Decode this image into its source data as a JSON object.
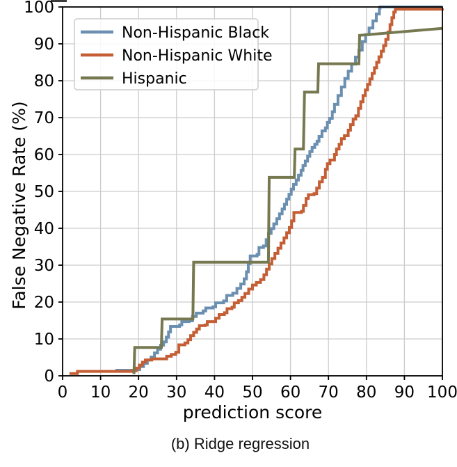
{
  "figure": {
    "caption": "(b) Ridge regression"
  },
  "chart_data": {
    "type": "line",
    "subtype": "step-cdf",
    "title": "",
    "xlabel": "prediction score",
    "ylabel": "False Negative Rate (%)",
    "xlim": [
      0,
      100
    ],
    "ylim": [
      0,
      100
    ],
    "xticks": [
      0,
      10,
      20,
      30,
      40,
      50,
      60,
      70,
      80,
      90,
      100
    ],
    "yticks": [
      0,
      10,
      20,
      30,
      40,
      50,
      60,
      70,
      80,
      90,
      100
    ],
    "grid": true,
    "grid_color": "#cccccc",
    "legend_position": "upper left",
    "series": [
      {
        "name": "Non-Hispanic Black",
        "color": "#6b8fb0",
        "interpolation": "step",
        "points": [
          [
            13.9,
            1.5
          ],
          [
            19.3,
            1.7
          ],
          [
            20.3,
            2.5
          ],
          [
            21.3,
            3.4
          ],
          [
            22.3,
            4.3
          ],
          [
            23.3,
            5.1
          ],
          [
            24.2,
            6.2
          ],
          [
            25,
            7.2
          ],
          [
            25.8,
            8.3
          ],
          [
            26.6,
            9.2
          ],
          [
            27.3,
            10.5
          ],
          [
            27.9,
            11.9
          ],
          [
            28.4,
            13.4
          ],
          [
            30.8,
            13.8
          ],
          [
            31.4,
            14.7
          ],
          [
            33.3,
            14.9
          ],
          [
            34.2,
            16.1
          ],
          [
            35.2,
            17
          ],
          [
            37,
            17.6
          ],
          [
            37.7,
            18.4
          ],
          [
            39.6,
            18.7
          ],
          [
            40.3,
            19.8
          ],
          [
            42.4,
            20.3
          ],
          [
            43.2,
            21.8
          ],
          [
            44.8,
            22.4
          ],
          [
            45.9,
            23.7
          ],
          [
            46.9,
            24.9
          ],
          [
            47.8,
            26.3
          ],
          [
            48.4,
            28.2
          ],
          [
            48.9,
            30.4
          ],
          [
            49.4,
            32.5
          ],
          [
            51.2,
            32.9
          ],
          [
            51.7,
            34.8
          ],
          [
            52.9,
            35.2
          ],
          [
            53.6,
            36.9
          ],
          [
            54.2,
            38.6
          ],
          [
            54.9,
            39.9
          ],
          [
            55.6,
            41.2
          ],
          [
            56.4,
            42.6
          ],
          [
            57.1,
            43.9
          ],
          [
            57.8,
            45.2
          ],
          [
            58.4,
            46.5
          ],
          [
            59,
            47.9
          ],
          [
            59.6,
            49.2
          ],
          [
            60.2,
            50.6
          ],
          [
            60.8,
            51.9
          ],
          [
            61.5,
            53.1
          ],
          [
            62.1,
            54.4
          ],
          [
            62.8,
            55.7
          ],
          [
            63.3,
            57
          ],
          [
            63.9,
            58.2
          ],
          [
            64.5,
            59.5
          ],
          [
            65.1,
            60.8
          ],
          [
            65.7,
            61.9
          ],
          [
            66.4,
            62.8
          ],
          [
            67,
            63.6
          ],
          [
            67.5,
            64.9
          ],
          [
            68.3,
            66.4
          ],
          [
            69.2,
            67.2
          ],
          [
            69.7,
            68.7
          ],
          [
            70.3,
            69.8
          ],
          [
            71,
            71.6
          ],
          [
            71.6,
            73.6
          ],
          [
            72.5,
            76
          ],
          [
            73.4,
            78.3
          ],
          [
            74.3,
            80.6
          ],
          [
            75.2,
            82.6
          ],
          [
            76.1,
            84.5
          ],
          [
            77.1,
            86.4
          ],
          [
            78,
            88.3
          ],
          [
            78.9,
            90.6
          ],
          [
            79.8,
            92.5
          ],
          [
            80.7,
            94.3
          ],
          [
            81.7,
            96.2
          ],
          [
            82.6,
            98.1
          ],
          [
            83.4,
            99.7
          ],
          [
            83.6,
            100
          ],
          [
            100,
            100
          ]
        ]
      },
      {
        "name": "Non-Hispanic White",
        "color": "#c45f35",
        "interpolation": "step",
        "points": [
          [
            1.8,
            0.6
          ],
          [
            3.9,
            1.2
          ],
          [
            18.3,
            1.4
          ],
          [
            19.4,
            2.1
          ],
          [
            20.2,
            2.9
          ],
          [
            21,
            3.7
          ],
          [
            21.8,
            4.3
          ],
          [
            23.5,
            4.6
          ],
          [
            27.4,
            5.3
          ],
          [
            28.6,
            5.8
          ],
          [
            29.8,
            6.4
          ],
          [
            30.6,
            8.4
          ],
          [
            32.2,
            8.9
          ],
          [
            33,
            9.8
          ],
          [
            33.7,
            10.9
          ],
          [
            34.5,
            11.8
          ],
          [
            35.3,
            12.7
          ],
          [
            36,
            13.6
          ],
          [
            37.5,
            13.8
          ],
          [
            38.1,
            14.7
          ],
          [
            40.3,
            15.6
          ],
          [
            41.2,
            16.6
          ],
          [
            42.6,
            17.1
          ],
          [
            43.3,
            18.2
          ],
          [
            44.6,
            18.6
          ],
          [
            45.2,
            19.8
          ],
          [
            46.3,
            20.4
          ],
          [
            47.2,
            21.3
          ],
          [
            48,
            22.3
          ],
          [
            49,
            23.5
          ],
          [
            50,
            24.6
          ],
          [
            51,
            25.3
          ],
          [
            52.1,
            26.1
          ],
          [
            53,
            27.4
          ],
          [
            53.7,
            28.9
          ],
          [
            54.4,
            30.3
          ],
          [
            55.1,
            31.8
          ],
          [
            55.9,
            33.2
          ],
          [
            56.7,
            34.6
          ],
          [
            57.5,
            36
          ],
          [
            58.3,
            37.4
          ],
          [
            59,
            38.8
          ],
          [
            59.7,
            40.2
          ],
          [
            60.3,
            42
          ],
          [
            60.9,
            44.3
          ],
          [
            62.9,
            44.6
          ],
          [
            63.4,
            46.2
          ],
          [
            64.1,
            48.1
          ],
          [
            64.7,
            49.1
          ],
          [
            66.2,
            49.4
          ],
          [
            66.9,
            50.9
          ],
          [
            67.6,
            52.6
          ],
          [
            68.4,
            53.8
          ],
          [
            69.2,
            56
          ],
          [
            69.7,
            57.5
          ],
          [
            70.4,
            58.5
          ],
          [
            71.6,
            60
          ],
          [
            72.1,
            61.5
          ],
          [
            72.8,
            62.8
          ],
          [
            73.4,
            64.3
          ],
          [
            74.2,
            65.1
          ],
          [
            75.2,
            66.6
          ],
          [
            75.8,
            68.1
          ],
          [
            76.5,
            69.6
          ],
          [
            77.2,
            70.5
          ],
          [
            77.9,
            72.5
          ],
          [
            78.5,
            74.3
          ],
          [
            79.1,
            76
          ],
          [
            79.7,
            77.5
          ],
          [
            80.3,
            79
          ],
          [
            80.9,
            80.5
          ],
          [
            81.5,
            82
          ],
          [
            82.1,
            83.5
          ],
          [
            82.7,
            85
          ],
          [
            83.3,
            86.5
          ],
          [
            83.9,
            88
          ],
          [
            84.5,
            89.5
          ],
          [
            85.1,
            91.2
          ],
          [
            85.7,
            93.2
          ],
          [
            86.2,
            95.2
          ],
          [
            86.7,
            97.1
          ],
          [
            87.2,
            98.6
          ],
          [
            87.6,
            99.4
          ],
          [
            100,
            99.6
          ]
        ]
      },
      {
        "name": "Hispanic",
        "color": "#767950",
        "interpolation": "linear",
        "points": [
          [
            18.8,
            0.5
          ],
          [
            19,
            7.7
          ],
          [
            26,
            7.7
          ],
          [
            26.2,
            15.4
          ],
          [
            34.3,
            15.4
          ],
          [
            34.5,
            30.8
          ],
          [
            54.2,
            30.8
          ],
          [
            54.4,
            53.8
          ],
          [
            61,
            53.8
          ],
          [
            61.2,
            61.5
          ],
          [
            63.4,
            61.5
          ],
          [
            63.7,
            76.9
          ],
          [
            67.2,
            76.9
          ],
          [
            67.4,
            84.6
          ],
          [
            78,
            84.6
          ],
          [
            78.2,
            92.3
          ],
          [
            100,
            94.2
          ]
        ]
      }
    ]
  }
}
